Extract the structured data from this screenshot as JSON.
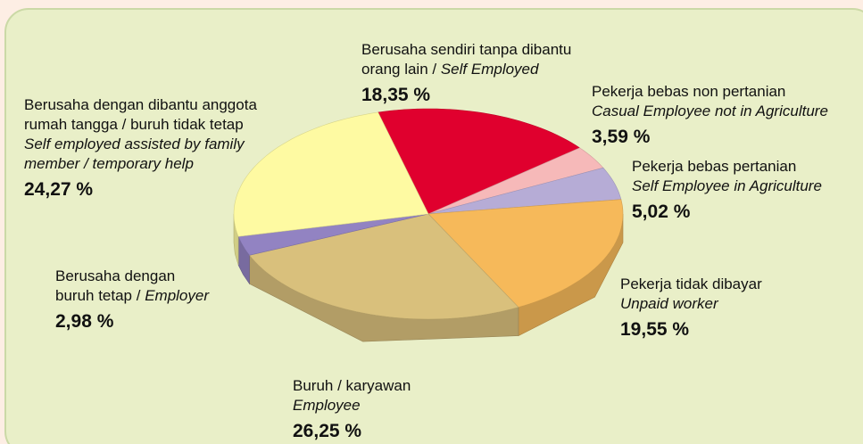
{
  "chart_data": {
    "type": "pie3d",
    "values": [
      18.35,
      3.59,
      5.02,
      19.55,
      26.25,
      2.98,
      24.27
    ],
    "value_labels": [
      "18,35 %",
      "3,59 %",
      "5,02 %",
      "19,55 %",
      "26,25 %",
      "2,98 %",
      "24,27 %"
    ],
    "colors": [
      "#e0002e",
      "#f6b9b9",
      "#b6acd6",
      "#f6b95a",
      "#d9c07c",
      "#9283c2",
      "#fefaa2"
    ],
    "labels": [
      [
        [
          {
            "text": "Berusaha sendiri tanpa dibantu"
          }
        ],
        [
          {
            "text": "orang lain / "
          },
          {
            "text": "Self Employed",
            "italic": true
          }
        ]
      ],
      [
        [
          {
            "text": "Pekerja bebas non pertanian"
          }
        ],
        [
          {
            "text": "Casual Employee not in Agriculture",
            "italic": true
          }
        ]
      ],
      [
        [
          {
            "text": "Pekerja bebas pertanian"
          }
        ],
        [
          {
            "text": "Self Employee in Agriculture",
            "italic": true
          }
        ]
      ],
      [
        [
          {
            "text": "Pekerja tidak dibayar"
          }
        ],
        [
          {
            "text": "Unpaid worker",
            "italic": true
          }
        ]
      ],
      [
        [
          {
            "text": "Buruh / karyawan"
          }
        ],
        [
          {
            "text": "Employee",
            "italic": true
          }
        ]
      ],
      [
        [
          {
            "text": "Berusaha dengan"
          }
        ],
        [
          {
            "text": "buruh tetap / "
          },
          {
            "text": "Employer",
            "italic": true
          }
        ]
      ],
      [
        [
          {
            "text": "Berusaha dengan dibantu anggota"
          }
        ],
        [
          {
            "text": "rumah tangga / buruh tidak tetap"
          }
        ],
        [
          {
            "text": "Self employed assisted by family",
            "italic": true
          }
        ],
        [
          {
            "text": "member / temporary help",
            "italic": true
          }
        ]
      ]
    ]
  }
}
